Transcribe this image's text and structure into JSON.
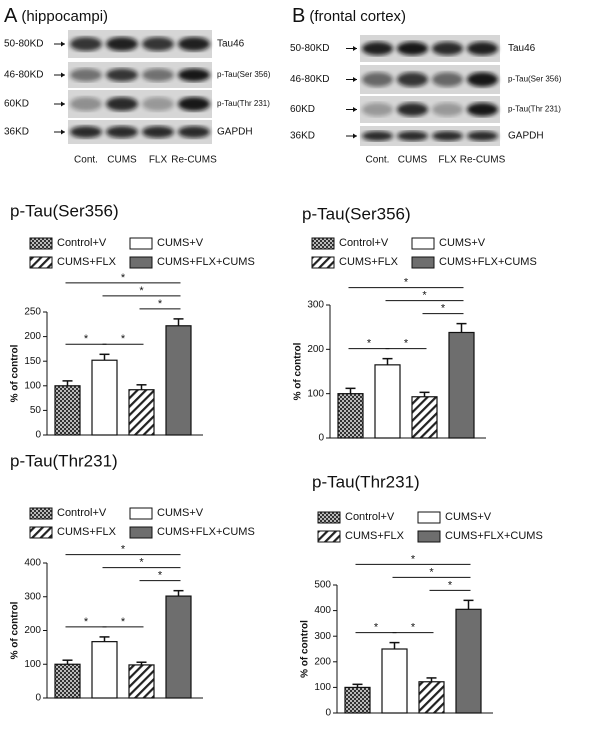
{
  "blots": [
    {
      "label": "A",
      "title": "(hippocampi)",
      "sizes": [
        "50-80KD",
        "46-80KD",
        "60KD",
        "36KD"
      ],
      "proteins": [
        "Tau46",
        "p-Tau(Ser 356)",
        "p-Tau(Thr 231)",
        "GAPDH"
      ],
      "lanes": [
        "Cont.",
        "CUMS",
        "FLX",
        "Re-CUMS"
      ]
    },
    {
      "label": "B",
      "title": "(frontal cortex)",
      "sizes": [
        "50-80KD",
        "46-80KD",
        "60KD",
        "36KD"
      ],
      "proteins": [
        "Tau46",
        "p-Tau(Ser 356)",
        "p-Tau(Thr 231)",
        "GAPDH"
      ],
      "lanes": [
        "Cont.",
        "CUMS",
        "FLX",
        "Re-CUMS"
      ]
    }
  ],
  "chart_data": [
    {
      "type": "bar",
      "title": "p-Tau(Ser356)",
      "ylabel": "% of control",
      "ylim": [
        0,
        250
      ],
      "yticks": [
        0,
        50,
        100,
        150,
        200,
        250
      ],
      "series": [
        {
          "name": "Control+V",
          "color": "#555555",
          "pattern": "checker",
          "values": [
            100
          ],
          "errors": [
            10
          ]
        },
        {
          "name": "CUMS+V",
          "color": "#ffffff",
          "pattern": "none",
          "values": [
            152
          ],
          "errors": [
            12
          ]
        },
        {
          "name": "CUMS+FLX",
          "color": "#333333",
          "pattern": "hatch",
          "values": [
            92
          ],
          "errors": [
            10
          ]
        },
        {
          "name": "CUMS+FLX+CUMS",
          "color": "#6e6e6e",
          "pattern": "none",
          "values": [
            222
          ],
          "errors": [
            14
          ]
        }
      ],
      "comparisons": [
        [
          0,
          1
        ],
        [
          1,
          2
        ],
        [
          2,
          3
        ],
        [
          1,
          3
        ],
        [
          0,
          3
        ]
      ],
      "comparison_labels": [
        "*",
        "*",
        "*",
        "*",
        "*"
      ]
    },
    {
      "type": "bar",
      "title": "p-Tau(Ser356)",
      "ylabel": "% of control",
      "ylim": [
        0,
        300
      ],
      "yticks": [
        0,
        100,
        200,
        300
      ],
      "series": [
        {
          "name": "Control+V",
          "color": "#555555",
          "pattern": "checker",
          "values": [
            100
          ],
          "errors": [
            12
          ]
        },
        {
          "name": "CUMS+V",
          "color": "#ffffff",
          "pattern": "none",
          "values": [
            165
          ],
          "errors": [
            14
          ]
        },
        {
          "name": "CUMS+FLX",
          "color": "#333333",
          "pattern": "hatch",
          "values": [
            93
          ],
          "errors": [
            10
          ]
        },
        {
          "name": "CUMS+FLX+CUMS",
          "color": "#6e6e6e",
          "pattern": "none",
          "values": [
            238
          ],
          "errors": [
            20
          ]
        }
      ],
      "comparisons": [
        [
          0,
          1
        ],
        [
          1,
          2
        ],
        [
          2,
          3
        ],
        [
          1,
          3
        ],
        [
          0,
          3
        ]
      ],
      "comparison_labels": [
        "*",
        "*",
        "*",
        "*",
        "*"
      ]
    },
    {
      "type": "bar",
      "title": "p-Tau(Thr231)",
      "ylabel": "% of control",
      "ylim": [
        0,
        400
      ],
      "yticks": [
        0,
        100,
        200,
        300,
        400
      ],
      "series": [
        {
          "name": "Control+V",
          "color": "#555555",
          "pattern": "checker",
          "values": [
            100
          ],
          "errors": [
            12
          ]
        },
        {
          "name": "CUMS+V",
          "color": "#ffffff",
          "pattern": "none",
          "values": [
            167
          ],
          "errors": [
            14
          ]
        },
        {
          "name": "CUMS+FLX",
          "color": "#333333",
          "pattern": "hatch",
          "values": [
            98
          ],
          "errors": [
            8
          ]
        },
        {
          "name": "CUMS+FLX+CUMS",
          "color": "#6e6e6e",
          "pattern": "none",
          "values": [
            302
          ],
          "errors": [
            16
          ]
        }
      ],
      "comparisons": [
        [
          0,
          1
        ],
        [
          1,
          2
        ],
        [
          2,
          3
        ],
        [
          1,
          3
        ],
        [
          0,
          3
        ]
      ],
      "comparison_labels": [
        "*",
        "*",
        "*",
        "*",
        "*"
      ]
    },
    {
      "type": "bar",
      "title": "p-Tau(Thr231)",
      "ylabel": "% of control",
      "ylim": [
        0,
        500
      ],
      "yticks": [
        0,
        100,
        200,
        300,
        400,
        500
      ],
      "series": [
        {
          "name": "Control+V",
          "color": "#555555",
          "pattern": "checker",
          "values": [
            100
          ],
          "errors": [
            12
          ]
        },
        {
          "name": "CUMS+V",
          "color": "#ffffff",
          "pattern": "none",
          "values": [
            250
          ],
          "errors": [
            25
          ]
        },
        {
          "name": "CUMS+FLX",
          "color": "#333333",
          "pattern": "hatch",
          "values": [
            122
          ],
          "errors": [
            15
          ]
        },
        {
          "name": "CUMS+FLX+CUMS",
          "color": "#6e6e6e",
          "pattern": "none",
          "values": [
            405
          ],
          "errors": [
            35
          ]
        }
      ],
      "comparisons": [
        [
          0,
          1
        ],
        [
          1,
          2
        ],
        [
          2,
          3
        ],
        [
          1,
          3
        ],
        [
          0,
          3
        ]
      ],
      "comparison_labels": [
        "*",
        "*",
        "*",
        "*",
        "*"
      ]
    }
  ]
}
